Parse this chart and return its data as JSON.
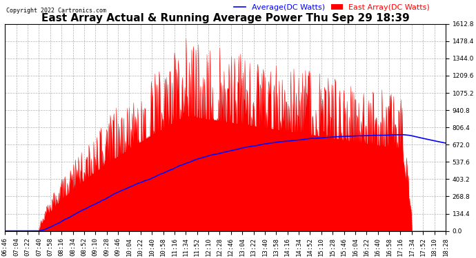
{
  "title": "East Array Actual & Running Average Power Thu Sep 29 18:39",
  "copyright": "Copyright 2022 Cartronics.com",
  "legend_avg": "Average(DC Watts)",
  "legend_east": "East Array(DC Watts)",
  "ymin": 0.0,
  "ymax": 1612.8,
  "ytick_step": 134.4,
  "background_color": "#ffffff",
  "grid_color": "#b0b0b0",
  "fill_color": "#ff0000",
  "line_color": "#0000ff",
  "title_fontsize": 11,
  "axis_fontsize": 6.5,
  "legend_fontsize": 8,
  "copyright_fontsize": 6,
  "xtick_labels": [
    "06:46",
    "07:04",
    "07:22",
    "07:40",
    "07:58",
    "08:16",
    "08:34",
    "08:52",
    "09:10",
    "09:28",
    "09:46",
    "10:04",
    "10:22",
    "10:40",
    "10:58",
    "11:16",
    "11:34",
    "11:52",
    "12:10",
    "12:28",
    "12:46",
    "13:04",
    "13:22",
    "13:40",
    "13:58",
    "14:16",
    "14:34",
    "14:52",
    "15:10",
    "15:28",
    "15:46",
    "16:04",
    "16:22",
    "16:40",
    "16:58",
    "17:16",
    "17:34",
    "17:52",
    "18:10",
    "18:28"
  ]
}
